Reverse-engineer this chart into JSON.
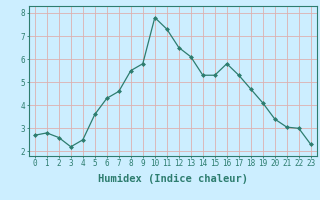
{
  "x": [
    0,
    1,
    2,
    3,
    4,
    5,
    6,
    7,
    8,
    9,
    10,
    11,
    12,
    13,
    14,
    15,
    16,
    17,
    18,
    19,
    20,
    21,
    22,
    23
  ],
  "y": [
    2.7,
    2.8,
    2.6,
    2.2,
    2.5,
    3.6,
    4.3,
    4.6,
    5.5,
    5.8,
    7.8,
    7.3,
    6.5,
    6.1,
    5.3,
    5.3,
    5.8,
    5.3,
    4.7,
    4.1,
    3.4,
    3.05,
    3.0,
    2.3
  ],
  "xlabel": "Humidex (Indice chaleur)",
  "ylabel_ticks": [
    2,
    3,
    4,
    5,
    6,
    7,
    8
  ],
  "ylim": [
    1.8,
    8.3
  ],
  "xlim": [
    -0.5,
    23.5
  ],
  "line_color": "#2d7d6f",
  "marker": "D",
  "marker_size": 2.0,
  "bg_color": "#cceeff",
  "grid_color": "#ddb0b0",
  "xlabel_fontsize": 7.5,
  "tick_fontsize": 5.5
}
